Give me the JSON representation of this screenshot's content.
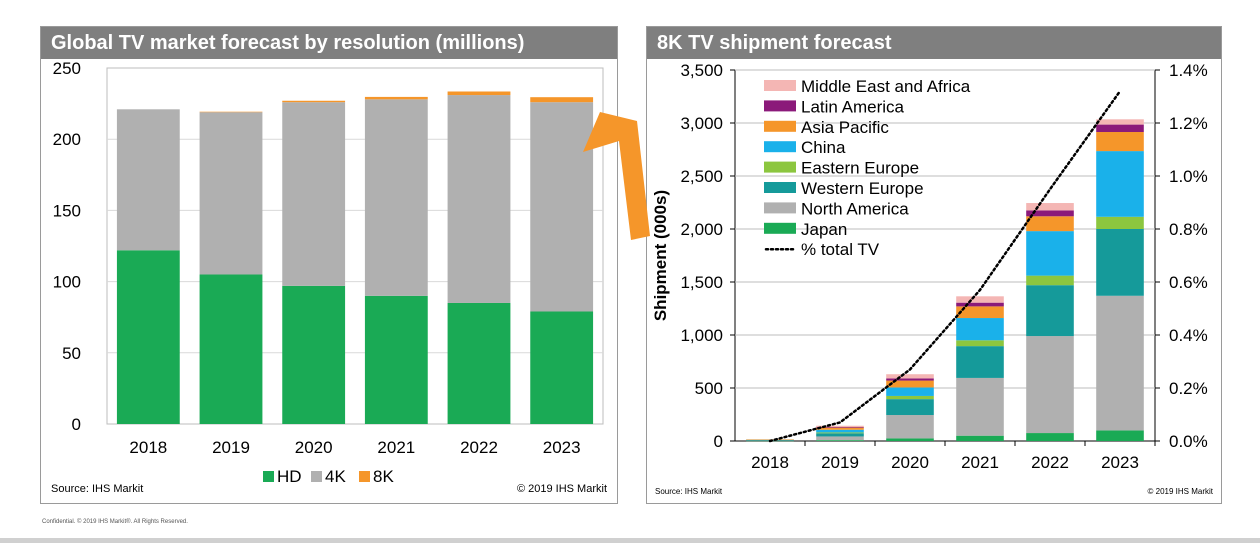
{
  "left_panel": {
    "title": "Global TV market forecast by resolution (millions)",
    "source": "Source: IHS Markit",
    "copyright": "© 2019 IHS Markit"
  },
  "right_panel": {
    "title": "8K TV shipment forecast",
    "source": "Source: IHS Markit",
    "copyright": "© 2019 IHS Markit"
  },
  "footer": {
    "note": "Confidential. © 2019 IHS Markit®. All Rights Reserved."
  },
  "chart_data": [
    {
      "type": "bar",
      "stacked": true,
      "title": "Global TV market forecast by resolution (millions)",
      "categories": [
        "2018",
        "2019",
        "2020",
        "2021",
        "2022",
        "2023"
      ],
      "series": [
        {
          "name": "HD",
          "color": "#1aaa55",
          "values": [
            122,
            105,
            97,
            90,
            85,
            79
          ]
        },
        {
          "name": "4K",
          "color": "#b0b0b0",
          "values": [
            99,
            114,
            129,
            138,
            146,
            147
          ]
        },
        {
          "name": "8K",
          "color": "#f5962a",
          "values": [
            0,
            0.3,
            1,
            1.7,
            2.5,
            3.5
          ]
        }
      ],
      "ylim": [
        0,
        250
      ],
      "yticks": [
        0,
        50,
        100,
        150,
        200,
        250
      ],
      "grid": true,
      "legend": "bottom"
    },
    {
      "type": "bar",
      "stacked": true,
      "title": "8K TV shipment forecast",
      "ylabel": "Shipment (000s)",
      "categories": [
        "2018",
        "2019",
        "2020",
        "2021",
        "2022",
        "2023"
      ],
      "series": [
        {
          "name": "Japan",
          "color": "#1aaa55",
          "values": [
            3,
            8,
            25,
            50,
            75,
            100
          ]
        },
        {
          "name": "North America",
          "color": "#b0b0b0",
          "values": [
            5,
            35,
            220,
            545,
            915,
            1270
          ]
        },
        {
          "name": "Western Europe",
          "color": "#159a9a",
          "values": [
            3,
            30,
            150,
            300,
            480,
            630
          ]
        },
        {
          "name": "Eastern Europe",
          "color": "#8cc63f",
          "values": [
            0,
            8,
            30,
            55,
            90,
            115
          ]
        },
        {
          "name": "China",
          "color": "#1ab1ea",
          "values": [
            2,
            25,
            80,
            210,
            420,
            620
          ]
        },
        {
          "name": "Asia Pacific",
          "color": "#f5962a",
          "values": [
            2,
            20,
            65,
            110,
            140,
            180
          ]
        },
        {
          "name": "Latin America",
          "color": "#8b1a7a",
          "values": [
            0,
            6,
            20,
            35,
            55,
            70
          ]
        },
        {
          "name": "Middle East and Africa",
          "color": "#f4b6b4",
          "values": [
            0,
            12,
            40,
            60,
            70,
            50
          ]
        }
      ],
      "line_series": {
        "name": "% total TV",
        "axis": "right",
        "x": [
          "2018",
          "2019",
          "2020",
          "2021",
          "2022",
          "2023"
        ],
        "values": [
          0.0,
          0.07,
          0.27,
          0.57,
          0.95,
          1.32
        ]
      },
      "ylim": [
        0,
        3500
      ],
      "yticks": [
        0,
        500,
        1000,
        1500,
        2000,
        2500,
        3000,
        3500
      ],
      "ytick_labels": [
        "0",
        "500",
        "1,000",
        "1,500",
        "2,000",
        "2,500",
        "3,000",
        "3,500"
      ],
      "y2lim": [
        0,
        1.4
      ],
      "y2ticks": [
        0.0,
        0.2,
        0.4,
        0.6,
        0.8,
        1.0,
        1.2,
        1.4
      ],
      "y2tick_labels": [
        "0.0%",
        "0.2%",
        "0.4%",
        "0.6%",
        "0.8%",
        "1.0%",
        "1.2%",
        "1.4%"
      ],
      "legend_order": [
        "Middle East and Africa",
        "Latin America",
        "Asia Pacific",
        "China",
        "Eastern Europe",
        "Western Europe",
        "North America",
        "Japan",
        "% total TV"
      ],
      "grid": true,
      "legend": "top-left"
    }
  ]
}
